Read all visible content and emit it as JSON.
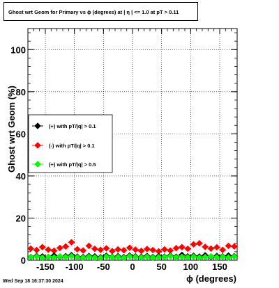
{
  "title": "Ghost wrt Geom for Primary vs ϕ (degrees) at | η | <= 1.0 at pT > 0.11",
  "timestamp": "Wed Sep 18 16:37:30 2024",
  "chart_data": {
    "type": "scatter",
    "title": "Ghost wrt Geom for Primary vs ϕ (degrees) at | η | <= 1.0 at pT > 0.11",
    "xlabel": "ϕ (degrees)",
    "ylabel": "Ghost wrt Geom (%)",
    "xlim": [
      -180,
      180
    ],
    "ylim": [
      0,
      110
    ],
    "xticks": [
      -150,
      -100,
      -50,
      0,
      50,
      100,
      150
    ],
    "yticks": [
      0,
      20,
      40,
      60,
      80,
      100
    ],
    "grid": true,
    "legend_position": "middle-left",
    "series": [
      {
        "name": "(+) with pT/|q| > 0.1",
        "color": "#000000",
        "marker": "diamond",
        "x": [
          -175,
          -165,
          -155,
          -145,
          -135,
          -125,
          -115,
          -105,
          -95,
          -85,
          -75,
          -65,
          -55,
          -45,
          -35,
          -25,
          -15,
          -5,
          5,
          15,
          25,
          35,
          45,
          55,
          65,
          75,
          85,
          95,
          105,
          115,
          125,
          135,
          145,
          155,
          165,
          175
        ],
        "y": [
          1.5,
          2,
          1.8,
          1.5,
          2.2,
          1.6,
          1.9,
          2.4,
          1.7,
          1.5,
          2,
          1.8,
          1.4,
          2.1,
          1.6,
          1.9,
          1.5,
          2.2,
          1.8,
          1.6,
          2,
          1.5,
          1.9,
          1.7,
          2.2,
          1.6,
          2.5,
          1.8,
          2.1,
          1.7,
          2.3,
          1.6,
          2,
          1.8,
          2.2,
          1.9
        ]
      },
      {
        "name": "(-) with pT/|q| > 0.1",
        "color": "#ff0000",
        "marker": "diamond",
        "x": [
          -175,
          -165,
          -155,
          -145,
          -135,
          -125,
          -115,
          -105,
          -95,
          -85,
          -75,
          -65,
          -55,
          -45,
          -35,
          -25,
          -15,
          -5,
          5,
          15,
          25,
          35,
          45,
          55,
          65,
          75,
          85,
          95,
          105,
          115,
          125,
          135,
          145,
          155,
          165,
          175
        ],
        "y": [
          5.5,
          4.8,
          6.2,
          5,
          4.5,
          5.8,
          6.5,
          8.5,
          5.2,
          4.6,
          6.8,
          5.4,
          4.9,
          5.6,
          4.3,
          5.1,
          4.7,
          5.9,
          5,
          4.4,
          5.3,
          4.8,
          4.2,
          5.1,
          4.6,
          5.7,
          6.2,
          5.4,
          7.5,
          8,
          6.3,
          5.5,
          6.1,
          4.9,
          6.8,
          6.5
        ]
      },
      {
        "name": "(+) with pT/|q| > 0.5",
        "color": "#00ff00",
        "marker": "diamond",
        "x": [
          -175,
          -165,
          -155,
          -145,
          -135,
          -125,
          -115,
          -105,
          -95,
          -85,
          -75,
          -65,
          -55,
          -45,
          -35,
          -25,
          -15,
          -5,
          5,
          15,
          25,
          35,
          45,
          55,
          65,
          75,
          85,
          95,
          105,
          115,
          125,
          135,
          145,
          155,
          165,
          175
        ],
        "y": [
          1.4,
          1.7,
          1.2,
          1.6,
          1.3,
          1.8,
          1.5,
          1.9,
          1.4,
          1.2,
          1.6,
          1.3,
          1.1,
          1.7,
          1.4,
          1.5,
          1.2,
          1.8,
          1.5,
          1.3,
          1.6,
          1.2,
          1.4,
          1.5,
          1.9,
          1.3,
          1.6,
          1.4,
          1.7,
          1.2,
          1.5,
          1.8,
          1.4,
          1.6,
          1.3,
          1.7
        ]
      }
    ]
  }
}
